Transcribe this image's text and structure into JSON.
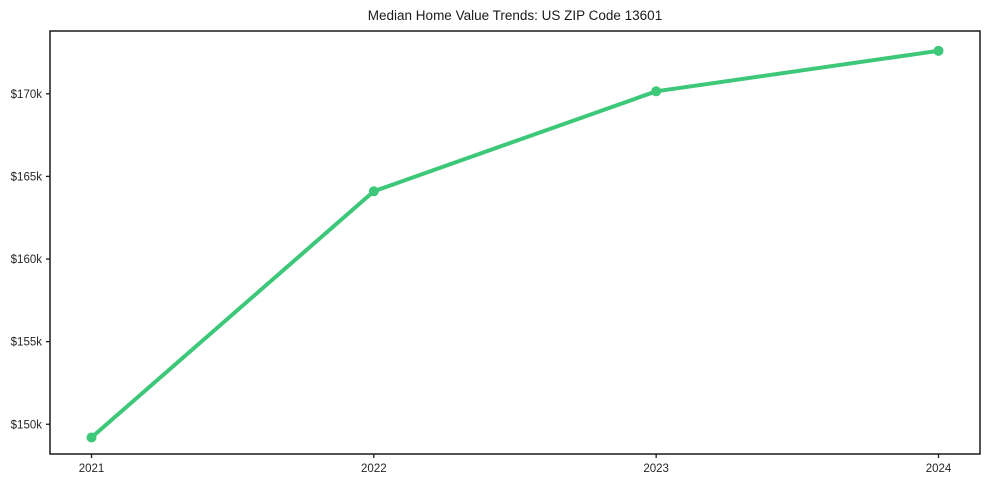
{
  "chart_data": {
    "type": "line",
    "title": "Median Home Value Trends: US ZIP Code 13601",
    "categories": [
      "2021",
      "2022",
      "2023",
      "2024"
    ],
    "series": [
      {
        "name": "Median Home Value",
        "values": [
          149200,
          164100,
          170150,
          172600
        ],
        "color": "#3cc878",
        "marker": "circle",
        "line_width": 4,
        "marker_radius": 5
      }
    ],
    "xlabel": "",
    "ylabel": "",
    "x_tick_labels": [
      "2021",
      "2022",
      "2023",
      "2024"
    ],
    "y_tick_values": [
      150000,
      155000,
      160000,
      165000,
      170000
    ],
    "y_tick_labels": [
      "$150k",
      "$155k",
      "$160k",
      "$165k",
      "$170k"
    ],
    "ylim": [
      148200,
      173800
    ],
    "grid": false,
    "legend_position": "none",
    "axis_color": "#1a1a1a",
    "text_color": "#262626",
    "background_color": "#ffffff"
  }
}
